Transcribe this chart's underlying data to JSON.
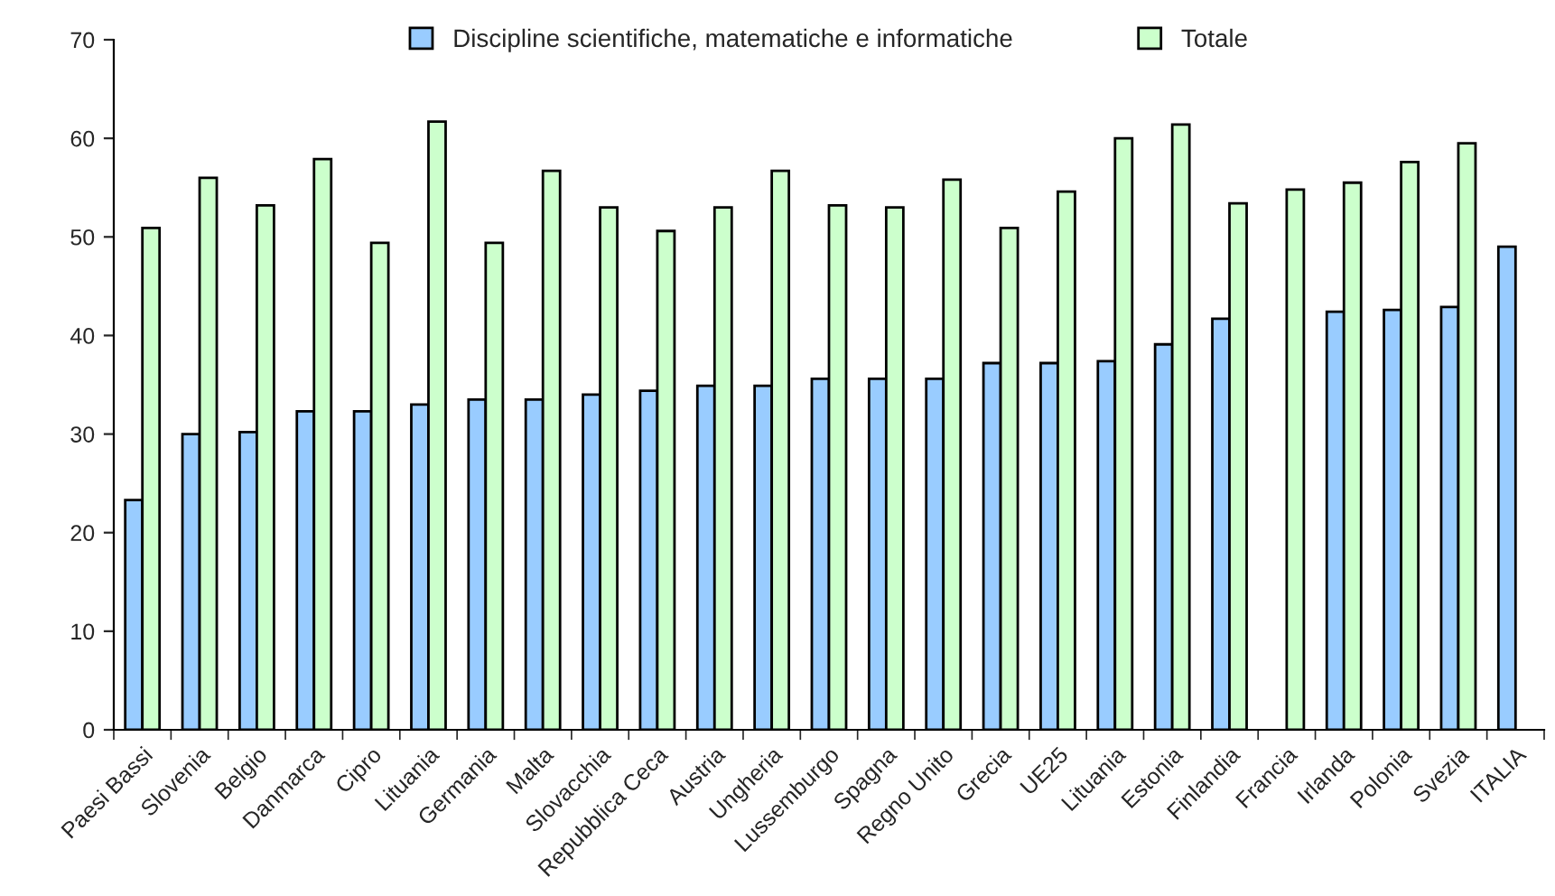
{
  "chart_data": {
    "type": "bar",
    "categories": [
      "Paesi Bassi",
      "Slovenia",
      "Belgio",
      "Danmarca",
      "Cipro",
      "Lituania",
      "Germania",
      "Malta",
      "Slovacchia",
      "Repubblica Ceca",
      "Austria",
      "Ungheria",
      "Lussemburgo",
      "Spagna",
      "Regno Unito",
      "Grecia",
      "UE25",
      "Lituania",
      "Estonia",
      "Finlandia",
      "Francia",
      "Irlanda",
      "Polonia",
      "Svezia",
      "ITALIA"
    ],
    "series": [
      {
        "name": "Discipline scientifiche, matematiche e informatiche",
        "color": "#99ccff",
        "values": [
          23.3,
          30,
          30.2,
          32.3,
          32.3,
          33,
          33.5,
          33.5,
          34,
          34.4,
          34.9,
          34.9,
          35.6,
          35.6,
          35.6,
          37.2,
          37.2,
          37.4,
          39.1,
          41.7,
          null,
          42.4,
          42.6,
          42.9,
          49
        ]
      },
      {
        "name": "Totale",
        "color": "#ccffcc",
        "values": [
          50.9,
          56,
          53.2,
          57.9,
          49.4,
          61.7,
          49.4,
          56.7,
          53,
          50.6,
          53,
          56.7,
          53.2,
          53,
          55.8,
          50.9,
          54.6,
          60,
          61.4,
          53.4,
          54.8,
          55.5,
          57.6,
          59.5,
          null
        ]
      }
    ],
    "ylim": [
      0,
      70
    ],
    "yticks": [
      0,
      10,
      20,
      30,
      40,
      50,
      60,
      70
    ],
    "grid": false,
    "legend": "top"
  }
}
